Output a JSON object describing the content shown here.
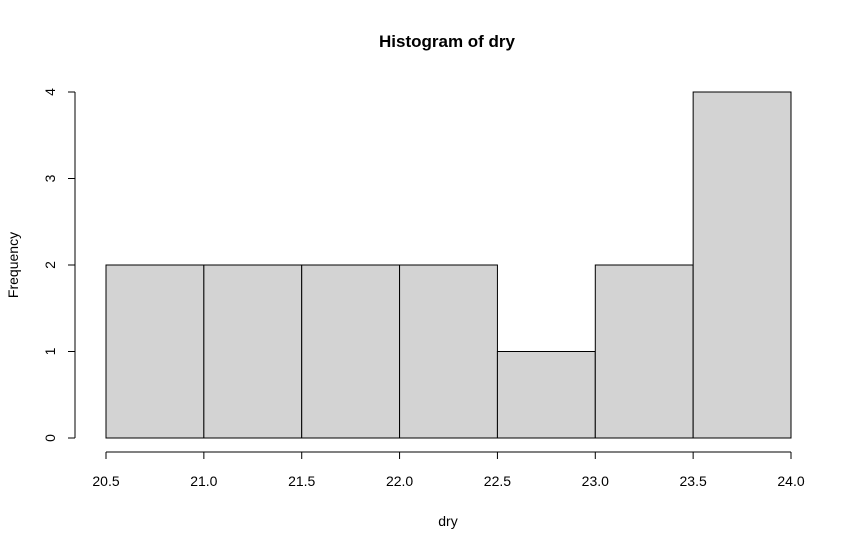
{
  "chart_data": {
    "type": "bar",
    "title": "Histogram of dry",
    "xlabel": "dry",
    "ylabel": "Frequency",
    "bins": [
      {
        "start": 20.5,
        "end": 21.0,
        "count": 2
      },
      {
        "start": 21.0,
        "end": 21.5,
        "count": 2
      },
      {
        "start": 21.5,
        "end": 22.0,
        "count": 2
      },
      {
        "start": 22.0,
        "end": 22.5,
        "count": 2
      },
      {
        "start": 22.5,
        "end": 23.0,
        "count": 1
      },
      {
        "start": 23.0,
        "end": 23.5,
        "count": 2
      },
      {
        "start": 23.5,
        "end": 24.0,
        "count": 4
      }
    ],
    "xlim": [
      20.5,
      24.0
    ],
    "ylim": [
      0,
      4
    ],
    "x_ticks": [
      "20.5",
      "21.0",
      "21.5",
      "22.0",
      "22.5",
      "23.0",
      "23.5",
      "24.0"
    ],
    "y_ticks": [
      "0",
      "1",
      "2",
      "3",
      "4"
    ],
    "grid": false,
    "bar_color": "#d3d3d3"
  }
}
